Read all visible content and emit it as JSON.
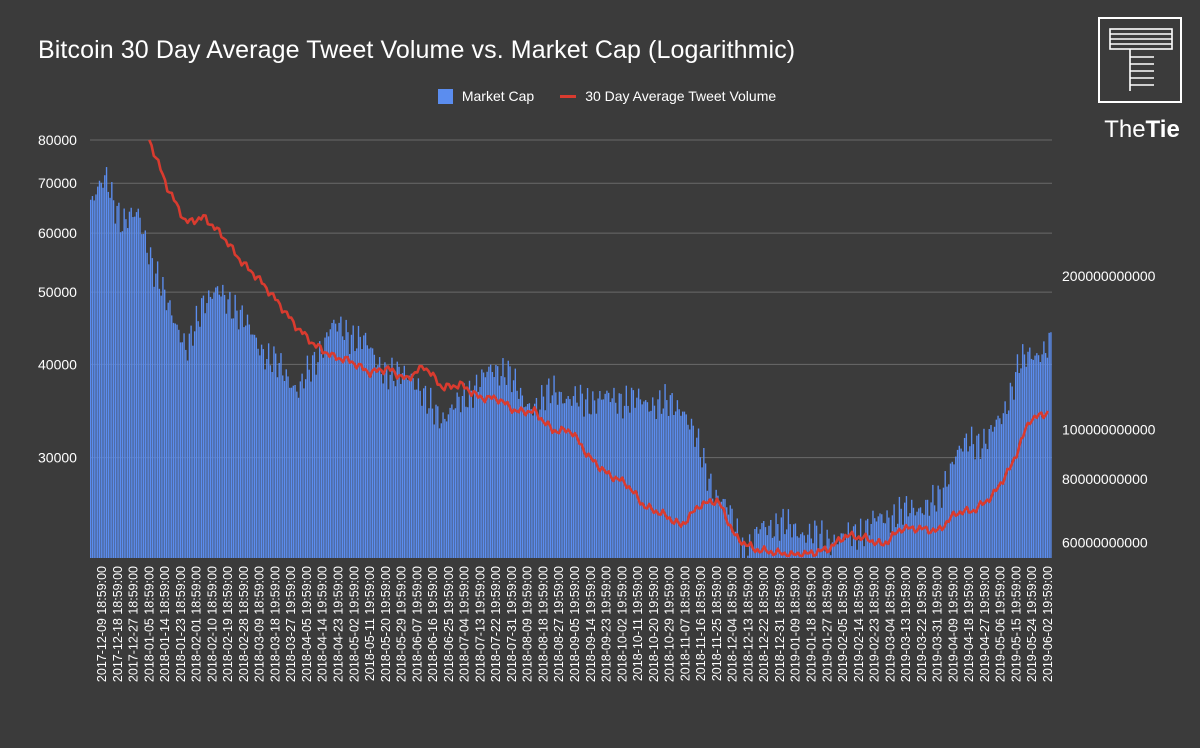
{
  "chart_data": {
    "type": "bar",
    "title": "Bitcoin 30 Day Average Tweet Volume vs. Market Cap (Logarithmic)",
    "legend_position": "top-center",
    "series": [
      {
        "name": "Market Cap",
        "type": "bar",
        "color": "#5b8def",
        "axis": "right"
      },
      {
        "name": "30 Day Average Tweet Volume",
        "type": "line",
        "color": "#d93b2f",
        "axis": "left"
      }
    ],
    "left_axis": {
      "scale": "log",
      "range": [
        22000,
        80000
      ],
      "ticks": [
        "80000",
        "70000",
        "60000",
        "50000",
        "40000",
        "30000"
      ]
    },
    "right_axis": {
      "scale": "log",
      "range": [
        56000000000,
        370000000000
      ],
      "ticks": [
        "200000000000",
        "100000000000",
        "80000000000",
        "60000000000"
      ]
    },
    "grid": true,
    "categories": [
      "2017-12-09 18:59:00",
      "2017-12-18 18:59:00",
      "2017-12-27 18:59:00",
      "2018-01-05 18:59:00",
      "2018-01-14 18:59:00",
      "2018-01-23 18:59:00",
      "2018-02-01 18:59:00",
      "2018-02-10 18:59:00",
      "2018-02-19 18:59:00",
      "2018-02-28 18:59:00",
      "2018-03-09 18:59:00",
      "2018-03-18 19:59:00",
      "2018-03-27 19:59:00",
      "2018-04-05 19:59:00",
      "2018-04-14 19:59:00",
      "2018-04-23 19:59:00",
      "2018-05-02 19:59:00",
      "2018-05-11 19:59:00",
      "2018-05-20 19:59:00",
      "2018-05-29 19:59:00",
      "2018-06-07 19:59:00",
      "2018-06-16 19:59:00",
      "2018-06-25 19:59:00",
      "2018-07-04 19:59:00",
      "2018-07-13 19:59:00",
      "2018-07-22 19:59:00",
      "2018-07-31 19:59:00",
      "2018-08-09 19:59:00",
      "2018-08-18 19:59:00",
      "2018-08-27 19:59:00",
      "2018-09-05 19:59:00",
      "2018-09-14 19:59:00",
      "2018-09-23 19:59:00",
      "2018-10-02 19:59:00",
      "2018-10-11 19:59:00",
      "2018-10-20 19:59:00",
      "2018-10-29 19:59:00",
      "2018-11-07 18:59:00",
      "2018-11-16 18:59:00",
      "2018-11-25 18:59:00",
      "2018-12-04 18:59:00",
      "2018-12-13 18:59:00",
      "2018-12-22 18:59:00",
      "2018-12-31 18:59:00",
      "2019-01-09 18:59:00",
      "2019-01-18 18:59:00",
      "2019-01-27 18:59:00",
      "2019-02-05 18:59:00",
      "2019-02-14 18:59:00",
      "2019-02-23 18:59:00",
      "2019-03-04 18:59:00",
      "2019-03-13 19:59:00",
      "2019-03-22 19:59:00",
      "2019-03-31 19:59:00",
      "2019-04-09 19:59:00",
      "2019-04-18 19:59:00",
      "2019-04-27 19:59:00",
      "2019-05-06 19:59:00",
      "2019-05-15 19:59:00",
      "2019-05-24 19:59:00",
      "2019-06-02 19:59:00"
    ],
    "x_tick_labels": [
      "2017-12-09 18:59:00",
      "2017-12-18 18:59:00",
      "2017-12-27 18:59:00",
      "2018-01-05 18:59:00",
      "2018-01-14 18:59:00",
      "2018-01-23 18:59:00",
      "2018-02-01 18:59:00",
      "2018-02-10 18:59:00",
      "2018-02-19 18:59:00",
      "2018-02-28 18:59:00",
      "2018-03-09 18:59:00",
      "2018-03-18 19:59:00",
      "2018-03-27 19:59:00",
      "2018-04-05 19:59:00",
      "2018-04-14 19:59:00",
      "2018-04-23 19:59:00",
      "2018-05-02 19:59:00",
      "2018-05-11 19:59:00",
      "2018-05-20 19:59:00",
      "2018-05-29 19:59:00",
      "2018-06-07 19:59:00",
      "2018-06-16 19:59:00",
      "2018-06-25 19:59:00",
      "2018-07-04 19:59:00",
      "2018-07-13 19:59:00",
      "2018-07-22 19:59:00",
      "2018-07-31 19:59:00",
      "2018-08-09 19:59:00",
      "2018-08-18 19:59:00",
      "2018-08-27 19:59:00",
      "2018-09-05 19:59:00",
      "2018-09-14 19:59:00",
      "2018-09-23 19:59:00",
      "2018-10-02 19:59:00",
      "2018-10-11 19:59:00",
      "2018-10-20 19:59:00",
      "2018-10-29 19:59:00",
      "2018-11-07 18:59:00",
      "2018-11-16 18:59:00",
      "2018-11-25 18:59:00",
      "2018-12-04 18:59:00",
      "2018-12-13 18:59:00",
      "2018-12-22 18:59:00",
      "2018-12-31 18:59:00",
      "2019-01-09 18:59:00",
      "2019-01-18 18:59:00",
      "2019-01-27 18:59:00",
      "2019-02-05 18:59:00",
      "2019-02-14 18:59:00",
      "2019-02-23 18:59:00",
      "2019-03-04 18:59:00",
      "2019-03-13 19:59:00",
      "2019-03-22 19:59:00",
      "2019-03-31 19:59:00",
      "2019-04-09 19:59:00",
      "2019-04-18 19:59:00",
      "2019-04-27 19:59:00",
      "2019-05-06 19:59:00",
      "2019-05-15 19:59:00",
      "2019-05-24 19:59:00",
      "2019-06-02 19:59:00"
    ],
    "market_cap": [
      275000000000,
      315000000000,
      250000000000,
      270000000000,
      200000000000,
      175000000000,
      140000000000,
      180000000000,
      185000000000,
      175000000000,
      155000000000,
      140000000000,
      130000000000,
      120000000000,
      135000000000,
      160000000000,
      155000000000,
      150000000000,
      135000000000,
      126000000000,
      130000000000,
      112000000000,
      106000000000,
      112000000000,
      122000000000,
      130000000000,
      132000000000,
      113000000000,
      112000000000,
      120000000000,
      114000000000,
      114000000000,
      115000000000,
      115000000000,
      114000000000,
      113000000000,
      112000000000,
      111000000000,
      92000000000,
      75000000000,
      68000000000,
      57000000000,
      65000000000,
      65000000000,
      64000000000,
      62000000000,
      61000000000,
      61000000000,
      63000000000,
      66000000000,
      68000000000,
      69000000000,
      71000000000,
      72000000000,
      90000000000,
      94000000000,
      96000000000,
      106000000000,
      135000000000,
      140000000000,
      148000000000
    ],
    "tweet_volume": [
      80000,
      69000,
      62000,
      63000,
      59500,
      55000,
      52000,
      48500,
      45000,
      42500,
      41000,
      40400,
      39000,
      39500,
      38200,
      39800,
      37200,
      37600,
      36100,
      36000,
      34600,
      34600,
      32600,
      32600,
      30000,
      28500,
      27700,
      25800,
      25200,
      24300,
      25900,
      26300,
      23400,
      22600,
      22400,
      22200,
      22300,
      22600,
      23600,
      23400,
      22900,
      24100,
      24100,
      23900,
      25300,
      25500,
      26700,
      29200,
      33700,
      34500
    ],
    "tweet_volume_x_range": [
      "2018-01-05 18:59:00",
      "2019-06-02 19:59:00"
    ]
  },
  "brand": {
    "logo_prefix": "The",
    "logo_suffix": "Tie"
  },
  "colors": {
    "background": "#3b3b3b",
    "grid": "#6a6a6a",
    "bar": "#5b8def",
    "line": "#d93b2f",
    "text": "#ffffff"
  }
}
